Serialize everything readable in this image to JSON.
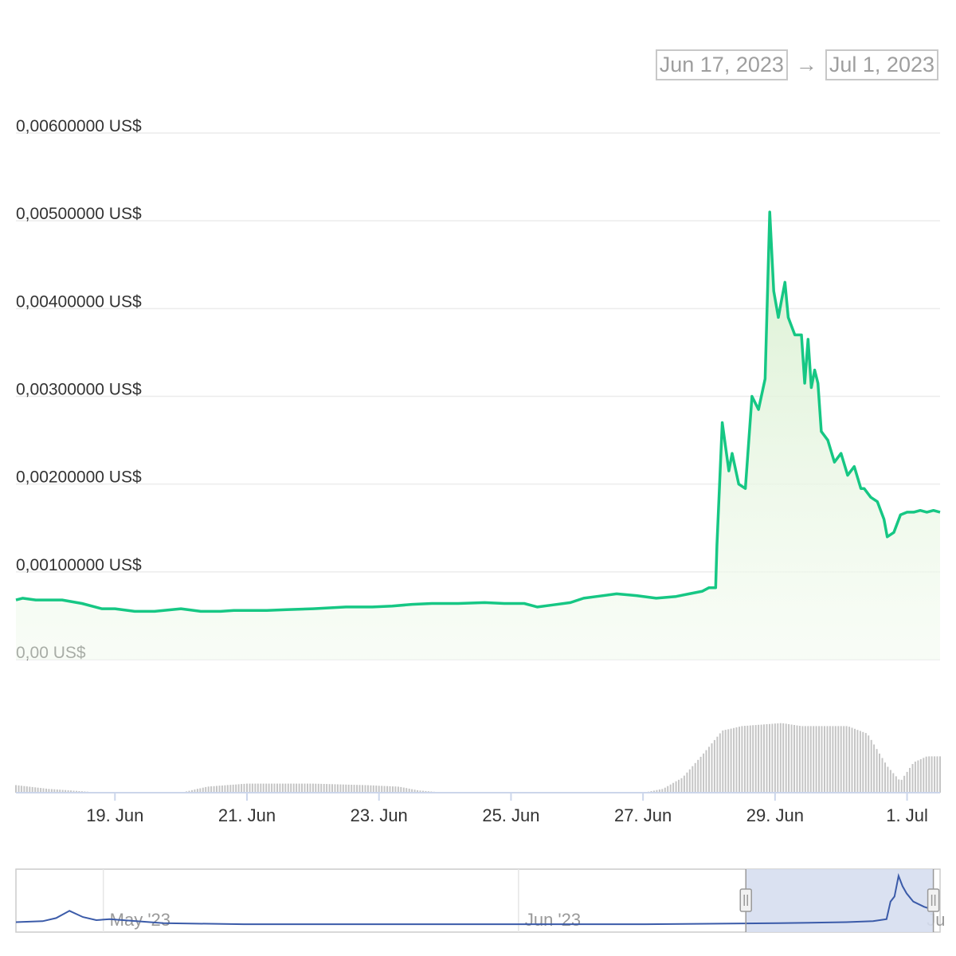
{
  "date_range": {
    "from": "Jun 17, 2023",
    "arrow": "→",
    "to": "Jul 1, 2023"
  },
  "colors": {
    "line": "#16c784",
    "fill_top": "#d7efce",
    "volume": "#c5c5c5",
    "navigator": "#3b5ba9",
    "navigator_mask": "#d6deef"
  },
  "chart_data": {
    "type": "area",
    "ylabel_format": "US$",
    "y_ticks": [
      "0,00 US$",
      "0,00100000 US$",
      "0,00200000 US$",
      "0,00300000 US$",
      "0,00400000 US$",
      "0,00500000 US$",
      "0,00600000 US$"
    ],
    "ylim": [
      0,
      0.006
    ],
    "x_ticks": [
      "19. Jun",
      "21. Jun",
      "23. Jun",
      "25. Jun",
      "27. Jun",
      "29. Jun",
      "1. Jul"
    ],
    "x_tick_days": [
      19,
      21,
      23,
      25,
      27,
      29,
      31
    ],
    "xlim_days": [
      17.5,
      31.5
    ],
    "price": {
      "x_days": [
        17.5,
        17.6,
        17.8,
        18.0,
        18.2,
        18.5,
        18.8,
        19.0,
        19.3,
        19.6,
        20.0,
        20.3,
        20.6,
        20.8,
        21.0,
        21.3,
        21.6,
        22.0,
        22.5,
        22.9,
        23.2,
        23.5,
        23.8,
        24.2,
        24.6,
        24.9,
        25.2,
        25.4,
        25.6,
        25.9,
        26.1,
        26.3,
        26.6,
        26.9,
        27.2,
        27.5,
        27.7,
        27.9,
        28.0,
        28.1,
        28.12,
        28.2,
        28.3,
        28.35,
        28.45,
        28.55,
        28.65,
        28.75,
        28.85,
        28.92,
        28.98,
        29.05,
        29.1,
        29.15,
        29.2,
        29.3,
        29.4,
        29.45,
        29.5,
        29.55,
        29.6,
        29.65,
        29.7,
        29.8,
        29.9,
        30.0,
        30.1,
        30.2,
        30.3,
        30.35,
        30.45,
        30.55,
        30.65,
        30.7,
        30.8,
        30.9,
        31.0,
        31.1,
        31.2,
        31.3,
        31.4,
        31.5
      ],
      "values": [
        0.00068,
        0.0007,
        0.00068,
        0.00068,
        0.00068,
        0.00064,
        0.00058,
        0.00058,
        0.00055,
        0.00055,
        0.00058,
        0.00055,
        0.00055,
        0.00056,
        0.00056,
        0.00056,
        0.00057,
        0.00058,
        0.0006,
        0.0006,
        0.00061,
        0.00063,
        0.00064,
        0.00064,
        0.00065,
        0.00064,
        0.00064,
        0.0006,
        0.00062,
        0.00065,
        0.0007,
        0.00072,
        0.00075,
        0.00073,
        0.0007,
        0.00072,
        0.00075,
        0.00078,
        0.00082,
        0.00082,
        0.0013,
        0.0027,
        0.00215,
        0.00235,
        0.002,
        0.00195,
        0.003,
        0.00285,
        0.0032,
        0.0051,
        0.0042,
        0.0039,
        0.0041,
        0.0043,
        0.0039,
        0.0037,
        0.0037,
        0.00315,
        0.00365,
        0.0031,
        0.0033,
        0.00315,
        0.0026,
        0.0025,
        0.00225,
        0.00235,
        0.0021,
        0.0022,
        0.00195,
        0.00195,
        0.00185,
        0.0018,
        0.0016,
        0.0014,
        0.00145,
        0.00165,
        0.00168,
        0.00168,
        0.0017,
        0.00168,
        0.0017,
        0.00168
      ]
    },
    "volume": {
      "x_days": [
        17.5,
        18.0,
        18.8,
        19.5,
        20.0,
        20.4,
        21.0,
        22.0,
        22.8,
        23.3,
        23.6,
        24.0,
        24.5,
        25.0,
        25.5,
        26.0,
        26.5,
        27.0,
        27.3,
        27.6,
        27.9,
        28.2,
        28.5,
        28.8,
        29.1,
        29.4,
        29.8,
        30.1,
        30.4,
        30.7,
        30.9,
        31.1,
        31.3,
        31.5
      ],
      "values": [
        0.1,
        0.05,
        0.0,
        0.0,
        0.0,
        0.08,
        0.12,
        0.12,
        0.1,
        0.08,
        0.03,
        0.0,
        0.0,
        0.0,
        0.0,
        0.0,
        0.0,
        0.0,
        0.05,
        0.2,
        0.5,
        0.82,
        0.88,
        0.9,
        0.92,
        0.88,
        0.88,
        0.88,
        0.78,
        0.35,
        0.15,
        0.4,
        0.48,
        0.48
      ]
    },
    "navigator": {
      "labels": [
        "May '23",
        "Jun '23",
        "Ju"
      ],
      "label_days": [
        -30.0,
        1.0,
        31.0
      ],
      "selection_days": [
        17.5,
        31.5
      ],
      "xlim_days": [
        -37.0,
        32.0
      ],
      "x_days": [
        -37,
        -35,
        -34,
        -33,
        -32,
        -31,
        -30,
        -29,
        -28,
        -26,
        -20,
        -10,
        0,
        10,
        20,
        25,
        27,
        28,
        28.3,
        28.6,
        28.9,
        29.2,
        29.5,
        30.0,
        30.8,
        31.5
      ],
      "values": [
        0.0005,
        0.0006,
        0.0009,
        0.0016,
        0.001,
        0.0007,
        0.0008,
        0.0007,
        0.0006,
        0.0004,
        0.0003,
        0.0003,
        0.0003,
        0.0003,
        0.0004,
        0.0005,
        0.0006,
        0.0008,
        0.0025,
        0.003,
        0.005,
        0.004,
        0.0033,
        0.0025,
        0.002,
        0.0017
      ]
    }
  }
}
